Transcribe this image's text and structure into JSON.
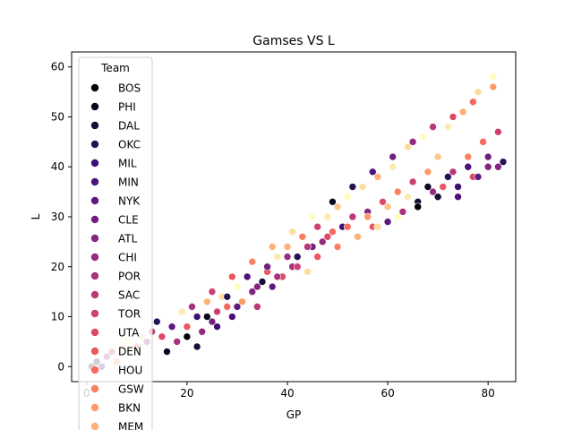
{
  "chart_data": {
    "type": "scatter",
    "title": "Gamses VS L",
    "xlabel": "GP",
    "ylabel": "L",
    "xlim": [
      -3,
      85.5
    ],
    "ylim": [
      -3,
      63
    ],
    "xticks": [
      0,
      20,
      40,
      60,
      80
    ],
    "yticks": [
      0,
      10,
      20,
      30,
      40,
      50,
      60
    ],
    "grid": false,
    "legend": {
      "title": "Team",
      "placement": "upper-left",
      "entries": [
        {
          "name": "BOS",
          "color": "#000004"
        },
        {
          "name": "PHI",
          "color": "#07061c"
        },
        {
          "name": "DAL",
          "color": "#150e37"
        },
        {
          "name": "OKC",
          "color": "#251255"
        },
        {
          "name": "MIL",
          "color": "#3b0f70"
        },
        {
          "name": "MIN",
          "color": "#4d117b"
        },
        {
          "name": "NYK",
          "color": "#5f187f"
        },
        {
          "name": "CLE",
          "color": "#711f81"
        },
        {
          "name": "ATL",
          "color": "#822681"
        },
        {
          "name": "CHI",
          "color": "#942c80"
        },
        {
          "name": "POR",
          "color": "#a8327d"
        },
        {
          "name": "SAC",
          "color": "#ba3878"
        },
        {
          "name": "TOR",
          "color": "#cd4071"
        },
        {
          "name": "UTA",
          "color": "#de4968"
        },
        {
          "name": "DEN",
          "color": "#ec5860"
        },
        {
          "name": "HOU",
          "color": "#f6695c"
        },
        {
          "name": "GSW",
          "color": "#fa815f"
        },
        {
          "name": "BKN",
          "color": "#fd9a6a"
        },
        {
          "name": "MEM",
          "color": "#feb078"
        }
      ],
      "extra_colors": [
        "#fec68a",
        "#fddc9e",
        "#fcebb0",
        "#fcfdbf"
      ]
    },
    "points": [
      [
        1,
        0,
        0
      ],
      [
        2,
        1,
        2
      ],
      [
        3,
        0,
        5
      ],
      [
        4,
        2,
        9
      ],
      [
        5,
        3,
        12
      ],
      [
        6,
        1,
        17
      ],
      [
        7,
        4,
        20
      ],
      [
        8,
        5,
        22
      ],
      [
        10,
        4,
        15
      ],
      [
        11,
        6,
        19
      ],
      [
        12,
        5,
        8
      ],
      [
        13,
        7,
        11
      ],
      [
        14,
        9,
        3
      ],
      [
        15,
        6,
        13
      ],
      [
        16,
        3,
        1
      ],
      [
        17,
        8,
        6
      ],
      [
        18,
        5,
        10
      ],
      [
        19,
        11,
        21
      ],
      [
        20,
        8,
        14
      ],
      [
        21,
        12,
        16
      ],
      [
        22,
        10,
        4
      ],
      [
        23,
        7,
        9
      ],
      [
        24,
        13,
        18
      ],
      [
        25,
        9,
        7
      ],
      [
        26,
        11,
        12
      ],
      [
        27,
        14,
        20
      ],
      [
        28,
        12,
        15
      ],
      [
        29,
        10,
        5
      ],
      [
        30,
        16,
        22
      ],
      [
        31,
        13,
        17
      ],
      [
        32,
        18,
        19
      ],
      [
        33,
        15,
        8
      ],
      [
        34,
        12,
        11
      ],
      [
        35,
        17,
        2
      ],
      [
        36,
        19,
        14
      ],
      [
        37,
        16,
        6
      ],
      [
        38,
        22,
        21
      ],
      [
        39,
        18,
        13
      ],
      [
        40,
        24,
        18
      ],
      [
        41,
        20,
        10
      ],
      [
        42,
        22,
        3
      ],
      [
        43,
        26,
        16
      ],
      [
        44,
        19,
        20
      ],
      [
        45,
        24,
        7
      ],
      [
        46,
        28,
        12
      ],
      [
        47,
        25,
        9
      ],
      [
        48,
        30,
        21
      ],
      [
        49,
        27,
        15
      ],
      [
        50,
        32,
        19
      ],
      [
        51,
        28,
        4
      ],
      [
        52,
        34,
        22
      ],
      [
        53,
        30,
        11
      ],
      [
        54,
        26,
        17
      ],
      [
        55,
        36,
        20
      ],
      [
        56,
        31,
        8
      ],
      [
        57,
        28,
        14
      ],
      [
        58,
        38,
        18
      ],
      [
        59,
        33,
        13
      ],
      [
        60,
        29,
        6
      ],
      [
        61,
        40,
        21
      ],
      [
        62,
        35,
        16
      ],
      [
        63,
        31,
        10
      ],
      [
        64,
        44,
        20
      ],
      [
        65,
        37,
        12
      ],
      [
        66,
        33,
        2
      ],
      [
        67,
        46,
        22
      ],
      [
        68,
        39,
        17
      ],
      [
        69,
        35,
        9
      ],
      [
        70,
        42,
        19
      ],
      [
        71,
        36,
        14
      ],
      [
        72,
        48,
        21
      ],
      [
        73,
        39,
        11
      ],
      [
        74,
        34,
        5
      ],
      [
        75,
        51,
        18
      ],
      [
        76,
        42,
        16
      ],
      [
        77,
        38,
        13
      ],
      [
        78,
        55,
        20
      ],
      [
        79,
        45,
        15
      ],
      [
        80,
        40,
        8
      ],
      [
        81,
        58,
        22
      ],
      [
        82,
        47,
        12
      ],
      [
        83,
        41,
        3
      ],
      [
        20,
        6,
        0
      ],
      [
        24,
        10,
        1
      ],
      [
        28,
        14,
        3
      ],
      [
        32,
        18,
        5
      ],
      [
        36,
        20,
        7
      ],
      [
        40,
        22,
        9
      ],
      [
        44,
        24,
        11
      ],
      [
        48,
        26,
        13
      ],
      [
        52,
        28,
        15
      ],
      [
        56,
        30,
        17
      ],
      [
        60,
        32,
        19
      ],
      [
        64,
        34,
        21
      ],
      [
        68,
        36,
        1
      ],
      [
        72,
        38,
        3
      ],
      [
        76,
        40,
        5
      ],
      [
        80,
        42,
        7
      ],
      [
        22,
        4,
        2
      ],
      [
        26,
        8,
        4
      ],
      [
        30,
        12,
        6
      ],
      [
        34,
        16,
        8
      ],
      [
        38,
        18,
        10
      ],
      [
        42,
        20,
        12
      ],
      [
        46,
        22,
        14
      ],
      [
        50,
        24,
        16
      ],
      [
        54,
        26,
        18
      ],
      [
        58,
        28,
        20
      ],
      [
        62,
        30,
        22
      ],
      [
        66,
        32,
        0
      ],
      [
        70,
        34,
        2
      ],
      [
        74,
        36,
        4
      ],
      [
        78,
        38,
        6
      ],
      [
        82,
        40,
        8
      ],
      [
        21,
        12,
        10
      ],
      [
        25,
        15,
        12
      ],
      [
        29,
        18,
        14
      ],
      [
        33,
        21,
        16
      ],
      [
        37,
        24,
        18
      ],
      [
        41,
        27,
        20
      ],
      [
        45,
        30,
        22
      ],
      [
        49,
        33,
        1
      ],
      [
        53,
        36,
        3
      ],
      [
        57,
        39,
        5
      ],
      [
        61,
        42,
        7
      ],
      [
        65,
        45,
        9
      ],
      [
        69,
        48,
        11
      ],
      [
        73,
        50,
        13
      ],
      [
        77,
        53,
        15
      ],
      [
        81,
        56,
        17
      ]
    ]
  }
}
